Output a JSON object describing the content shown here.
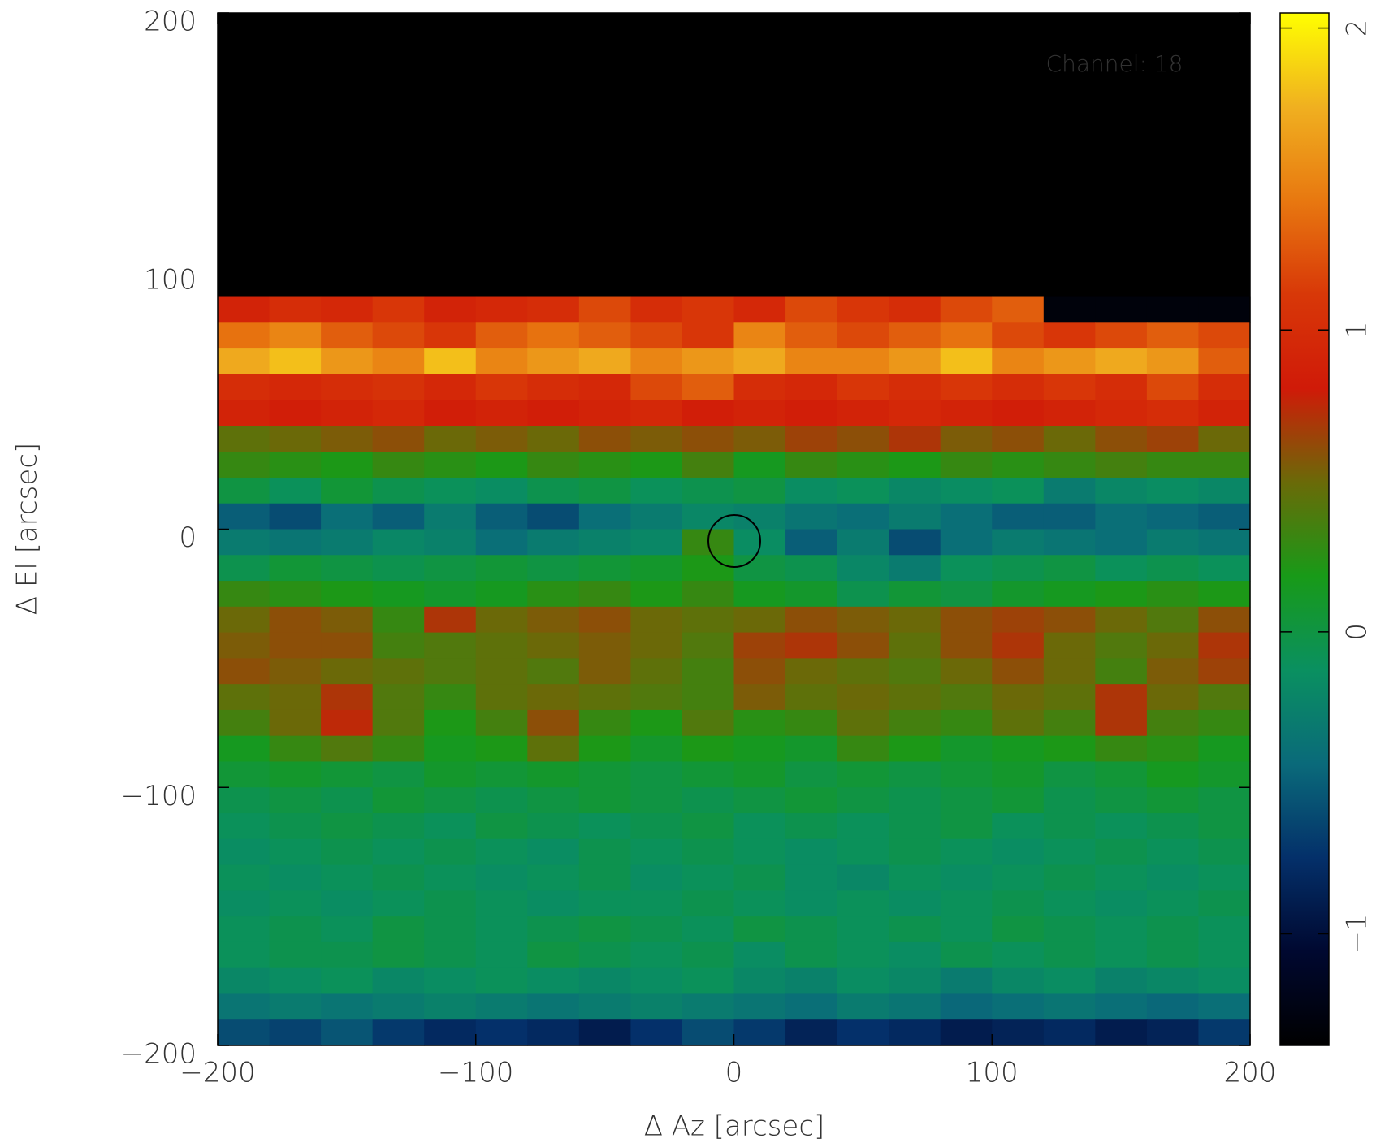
{
  "chart_data": {
    "type": "heatmap",
    "annotation": "Channel: 18",
    "xlabel": "Δ Az [arcsec]",
    "ylabel": "Δ El [arcsec]",
    "xlim": [
      -200,
      200
    ],
    "ylim": [
      -200,
      200
    ],
    "xticks": [
      {
        "value": -200,
        "label": "−200"
      },
      {
        "value": -100,
        "label": "−100"
      },
      0,
      100,
      200
    ],
    "yticks": [
      {
        "value": -200,
        "label": "−200"
      },
      {
        "value": -100,
        "label": "−100"
      },
      0,
      100,
      200
    ],
    "zlim": [
      -1.37,
      2.05
    ],
    "zticks": [
      {
        "value": -1,
        "label": "−1"
      },
      0,
      1,
      2
    ],
    "background": "#000000",
    "annotation_color": "#c00000",
    "colormap": [
      "#000000",
      "#000830",
      "#04306a",
      "#0a6a7a",
      "#0a9060",
      "#189a18",
      "#6a6a08",
      "#d01a08",
      "#d83808",
      "#e87810",
      "#f0b020",
      "#ffff00"
    ],
    "x": [
      -190,
      -170,
      -150,
      -130,
      -110,
      -90,
      -70,
      -50,
      -30,
      -10,
      10,
      30,
      50,
      70,
      90,
      110,
      130,
      150,
      170,
      190
    ],
    "y": [
      85,
      75,
      65,
      55,
      45,
      35,
      25,
      15,
      5,
      -5,
      -15,
      -25,
      -35,
      -45,
      -55,
      -65,
      -75,
      -85,
      -95,
      -105,
      -115,
      -125,
      -135,
      -145,
      -155,
      -165,
      -175,
      -185,
      -195
    ],
    "values": [
      [
        0.9,
        1.0,
        0.95,
        1.1,
        0.9,
        0.95,
        1.0,
        1.2,
        1.0,
        1.1,
        0.95,
        1.2,
        1.1,
        1.0,
        1.2,
        1.3,
        -1.3,
        -1.3,
        -1.3,
        -1.3
      ],
      [
        1.4,
        1.5,
        1.3,
        1.2,
        1.1,
        1.3,
        1.4,
        1.3,
        1.2,
        1.1,
        1.5,
        1.3,
        1.2,
        1.3,
        1.4,
        1.2,
        1.1,
        1.2,
        1.3,
        1.2
      ],
      [
        1.7,
        1.8,
        1.6,
        1.5,
        1.8,
        1.5,
        1.6,
        1.7,
        1.5,
        1.6,
        1.7,
        1.5,
        1.5,
        1.6,
        1.8,
        1.5,
        1.6,
        1.7,
        1.6,
        1.3
      ],
      [
        1.0,
        0.95,
        1.0,
        1.05,
        0.95,
        1.1,
        1.0,
        0.95,
        1.2,
        1.3,
        1.0,
        0.95,
        1.1,
        1.0,
        1.1,
        1.0,
        1.1,
        1.0,
        1.2,
        1.0
      ],
      [
        0.9,
        0.85,
        0.9,
        0.95,
        0.85,
        0.9,
        0.85,
        0.9,
        0.95,
        0.85,
        0.9,
        0.85,
        0.9,
        0.95,
        0.9,
        0.85,
        0.9,
        0.95,
        1.0,
        0.9
      ],
      [
        0.45,
        0.5,
        0.55,
        0.6,
        0.5,
        0.55,
        0.5,
        0.6,
        0.55,
        0.6,
        0.55,
        0.65,
        0.6,
        0.7,
        0.55,
        0.6,
        0.5,
        0.6,
        0.65,
        0.5
      ],
      [
        0.3,
        0.25,
        0.2,
        0.3,
        0.25,
        0.2,
        0.3,
        0.25,
        0.2,
        0.35,
        0.15,
        0.3,
        0.25,
        0.2,
        0.3,
        0.25,
        0.3,
        0.35,
        0.3,
        0.3
      ],
      [
        0.0,
        -0.1,
        0.05,
        -0.05,
        -0.1,
        -0.15,
        -0.05,
        0.0,
        -0.1,
        -0.05,
        0.0,
        -0.15,
        -0.1,
        -0.2,
        -0.15,
        -0.1,
        -0.3,
        -0.2,
        -0.15,
        -0.2
      ],
      [
        -0.5,
        -0.6,
        -0.4,
        -0.5,
        -0.3,
        -0.5,
        -0.6,
        -0.4,
        -0.3,
        -0.2,
        -0.25,
        -0.35,
        -0.4,
        -0.3,
        -0.4,
        -0.5,
        -0.5,
        -0.4,
        -0.45,
        -0.5
      ],
      [
        -0.3,
        -0.35,
        -0.3,
        -0.2,
        -0.25,
        -0.4,
        -0.3,
        -0.25,
        -0.2,
        0.3,
        -0.15,
        -0.5,
        -0.3,
        -0.6,
        -0.4,
        -0.3,
        -0.35,
        -0.4,
        -0.3,
        -0.35
      ],
      [
        -0.05,
        0.05,
        0.0,
        -0.05,
        0.0,
        0.05,
        0.0,
        0.05,
        0.1,
        0.2,
        0.0,
        -0.05,
        -0.2,
        -0.3,
        -0.1,
        -0.05,
        0.0,
        -0.1,
        -0.05,
        -0.1
      ],
      [
        0.3,
        0.25,
        0.2,
        0.15,
        0.1,
        0.15,
        0.25,
        0.3,
        0.2,
        0.3,
        0.15,
        0.1,
        -0.05,
        0.05,
        0.0,
        0.1,
        0.15,
        0.2,
        0.25,
        0.2
      ],
      [
        0.5,
        0.6,
        0.55,
        0.3,
        0.7,
        0.5,
        0.55,
        0.6,
        0.5,
        0.45,
        0.5,
        0.6,
        0.55,
        0.5,
        0.6,
        0.65,
        0.6,
        0.5,
        0.4,
        0.6
      ],
      [
        0.55,
        0.6,
        0.6,
        0.35,
        0.4,
        0.45,
        0.5,
        0.55,
        0.5,
        0.4,
        0.65,
        0.7,
        0.6,
        0.45,
        0.6,
        0.7,
        0.5,
        0.4,
        0.5,
        0.7
      ],
      [
        0.6,
        0.55,
        0.5,
        0.45,
        0.4,
        0.45,
        0.4,
        0.55,
        0.45,
        0.35,
        0.6,
        0.5,
        0.45,
        0.4,
        0.5,
        0.6,
        0.5,
        0.35,
        0.55,
        0.65
      ],
      [
        0.45,
        0.5,
        0.7,
        0.4,
        0.3,
        0.45,
        0.5,
        0.45,
        0.4,
        0.35,
        0.55,
        0.45,
        0.5,
        0.45,
        0.4,
        0.5,
        0.45,
        0.7,
        0.5,
        0.4
      ],
      [
        0.35,
        0.5,
        0.75,
        0.4,
        0.2,
        0.35,
        0.6,
        0.3,
        0.2,
        0.4,
        0.25,
        0.3,
        0.45,
        0.35,
        0.3,
        0.45,
        0.35,
        0.7,
        0.35,
        0.3
      ],
      [
        0.15,
        0.3,
        0.4,
        0.3,
        0.15,
        0.2,
        0.45,
        0.2,
        0.1,
        0.2,
        0.15,
        0.1,
        0.3,
        0.2,
        0.1,
        0.15,
        0.2,
        0.3,
        0.25,
        0.15
      ],
      [
        0.05,
        0.1,
        0.05,
        0.0,
        0.1,
        0.05,
        0.1,
        0.05,
        0.0,
        0.05,
        0.1,
        0.0,
        0.05,
        0.0,
        0.05,
        0.1,
        0.0,
        0.05,
        0.15,
        0.1
      ],
      [
        -0.05,
        0.0,
        -0.05,
        0.05,
        0.0,
        -0.05,
        0.0,
        0.05,
        0.0,
        -0.05,
        0.0,
        0.05,
        0.0,
        -0.05,
        0.0,
        0.05,
        -0.05,
        0.0,
        0.05,
        0.0
      ],
      [
        -0.1,
        -0.05,
        0.0,
        -0.05,
        -0.1,
        0.0,
        -0.05,
        -0.1,
        -0.05,
        0.0,
        -0.1,
        -0.05,
        -0.1,
        -0.05,
        0.0,
        -0.1,
        -0.05,
        -0.1,
        -0.05,
        0.0
      ],
      [
        -0.15,
        -0.1,
        -0.05,
        -0.1,
        -0.05,
        -0.1,
        -0.15,
        -0.05,
        -0.1,
        -0.05,
        -0.1,
        -0.15,
        -0.1,
        -0.05,
        -0.1,
        -0.15,
        -0.1,
        -0.05,
        -0.1,
        -0.05
      ],
      [
        -0.1,
        -0.15,
        -0.1,
        -0.05,
        -0.1,
        -0.15,
        -0.1,
        -0.05,
        -0.15,
        -0.1,
        -0.05,
        -0.15,
        -0.2,
        -0.1,
        -0.15,
        -0.1,
        -0.05,
        -0.1,
        -0.15,
        -0.1
      ],
      [
        -0.15,
        -0.1,
        -0.15,
        -0.1,
        -0.05,
        -0.1,
        -0.15,
        -0.1,
        -0.1,
        -0.05,
        -0.1,
        -0.15,
        -0.1,
        -0.15,
        -0.1,
        -0.05,
        -0.1,
        -0.15,
        -0.1,
        -0.05
      ],
      [
        -0.1,
        -0.05,
        -0.1,
        0.0,
        -0.05,
        -0.1,
        -0.05,
        0.0,
        -0.05,
        -0.1,
        0.0,
        -0.05,
        -0.1,
        -0.05,
        -0.1,
        0.0,
        -0.05,
        -0.1,
        -0.05,
        -0.1
      ],
      [
        -0.1,
        -0.05,
        -0.05,
        0.0,
        -0.05,
        -0.1,
        0.0,
        -0.05,
        -0.1,
        -0.05,
        -0.15,
        -0.05,
        -0.1,
        -0.15,
        -0.05,
        -0.1,
        -0.05,
        -0.1,
        -0.05,
        -0.1
      ],
      [
        -0.2,
        -0.15,
        -0.1,
        -0.2,
        -0.15,
        -0.1,
        -0.15,
        -0.2,
        -0.15,
        -0.1,
        -0.2,
        -0.25,
        -0.15,
        -0.2,
        -0.3,
        -0.2,
        -0.15,
        -0.25,
        -0.2,
        -0.15
      ],
      [
        -0.35,
        -0.3,
        -0.35,
        -0.3,
        -0.25,
        -0.3,
        -0.35,
        -0.3,
        -0.25,
        -0.3,
        -0.35,
        -0.4,
        -0.3,
        -0.35,
        -0.45,
        -0.4,
        -0.35,
        -0.4,
        -0.45,
        -0.4
      ],
      [
        -0.6,
        -0.65,
        -0.55,
        -0.7,
        -0.8,
        -0.75,
        -0.8,
        -0.9,
        -0.75,
        -0.6,
        -0.7,
        -0.85,
        -0.75,
        -0.8,
        -0.9,
        -0.85,
        -0.8,
        -0.9,
        -0.85,
        -0.7
      ]
    ]
  }
}
